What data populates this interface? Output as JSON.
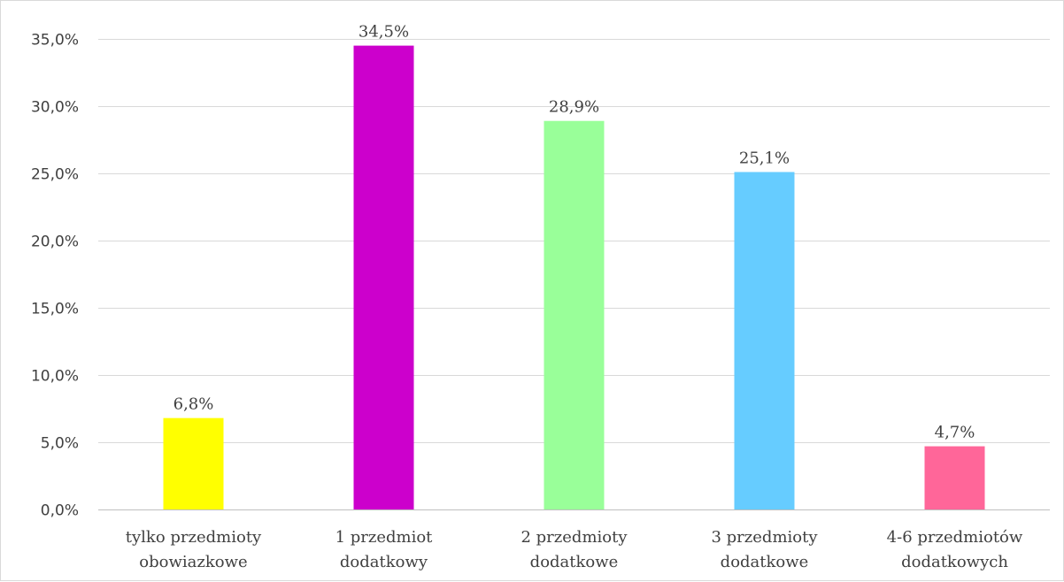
{
  "chart_data": {
    "type": "bar",
    "categories": [
      [
        "tylko przedmioty",
        "obowiazkowe"
      ],
      [
        "1 przedmiot",
        "dodatkowy"
      ],
      [
        "2 przedmioty",
        "dodatkowe"
      ],
      [
        "3 przedmioty",
        "dodatkowe"
      ],
      [
        "4-6 przedmiotów",
        "dodatkowych"
      ]
    ],
    "values": [
      6.8,
      34.5,
      28.9,
      25.1,
      4.7
    ],
    "data_labels": [
      "6,8%",
      "34,5%",
      "28,9%",
      "25,1%",
      "4,7%"
    ],
    "colors": [
      "#ffff00",
      "#cc00cc",
      "#99ff99",
      "#66ccff",
      "#ff6699"
    ],
    "ylim": [
      0,
      35
    ],
    "yticks": [
      {
        "value": 0,
        "label": "0,0%"
      },
      {
        "value": 5,
        "label": "5,0%"
      },
      {
        "value": 10,
        "label": "10,0%"
      },
      {
        "value": 15,
        "label": "15,0%"
      },
      {
        "value": 20,
        "label": "20,0%"
      },
      {
        "value": 25,
        "label": "25,0%"
      },
      {
        "value": 30,
        "label": "30,0%"
      },
      {
        "value": 35,
        "label": "35,0%"
      }
    ],
    "grid": true,
    "legend": "none",
    "title": "",
    "xlabel": "",
    "ylabel": ""
  }
}
